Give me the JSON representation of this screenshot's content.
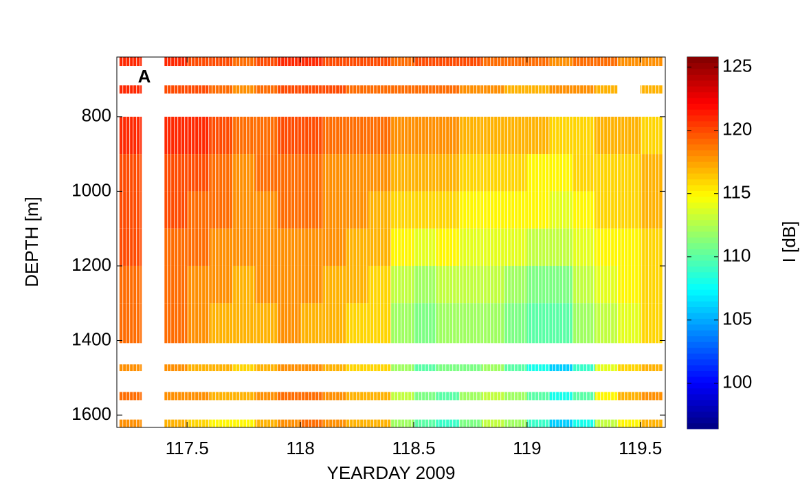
{
  "chart_data": {
    "type": "heatmap",
    "xlabel": "YEARDAY 2009",
    "ylabel": "DEPTH [m]",
    "colorbar_label": "I [dB]",
    "annotation": "A",
    "xlim": [
      117.19,
      119.61
    ],
    "xticks": [
      117.5,
      118,
      118.5,
      119,
      119.5
    ],
    "ylim": [
      640,
      1633
    ],
    "yticks": [
      800,
      1000,
      1200,
      1400,
      1600
    ],
    "y_reversed": true,
    "clim": [
      96.4,
      125.8
    ],
    "cticks": [
      100,
      105,
      110,
      115,
      120,
      125
    ],
    "colormap": "jet",
    "x_bins": [
      117.2,
      117.3,
      117.4,
      117.5,
      117.6,
      117.7,
      117.8,
      117.9,
      118.0,
      118.1,
      118.2,
      118.3,
      118.4,
      118.5,
      118.6,
      118.7,
      118.8,
      118.9,
      119.0,
      119.1,
      119.2,
      119.3,
      119.4,
      119.5,
      119.6
    ],
    "depth_bins": [
      [
        640,
        664
      ],
      [
        716,
        738
      ],
      [
        800,
        900
      ],
      [
        900,
        1000
      ],
      [
        1000,
        1100
      ],
      [
        1100,
        1200
      ],
      [
        1200,
        1300
      ],
      [
        1300,
        1407
      ],
      [
        1464,
        1482
      ],
      [
        1538,
        1560
      ],
      [
        1612,
        1633
      ]
    ],
    "z": [
      [
        121,
        null,
        121,
        120,
        120,
        119,
        120,
        121,
        121,
        120,
        120,
        120,
        119,
        120,
        120,
        120,
        119,
        119,
        119,
        118,
        119,
        119,
        118,
        118
      ],
      [
        121,
        null,
        120,
        120,
        119,
        118,
        119,
        120,
        120,
        120,
        119,
        119,
        119,
        119,
        119,
        118,
        118,
        117,
        117,
        118,
        118,
        117,
        null,
        117
      ],
      [
        121,
        null,
        121,
        121,
        120,
        119,
        119,
        120,
        120,
        119,
        119,
        119,
        118,
        118,
        118,
        117,
        117,
        117,
        117,
        116,
        116,
        117,
        117,
        116
      ],
      [
        120,
        null,
        120,
        120,
        119,
        118,
        119,
        119,
        119,
        118,
        118,
        118,
        117,
        117,
        117,
        116,
        116,
        116,
        115,
        115,
        116,
        116,
        116,
        117
      ],
      [
        120,
        null,
        120,
        119,
        119,
        118,
        118,
        119,
        119,
        118,
        118,
        117,
        116,
        116,
        116,
        115,
        115,
        115,
        115,
        114,
        115,
        116,
        116,
        117
      ],
      [
        120,
        null,
        119,
        119,
        118,
        118,
        118,
        118,
        118,
        118,
        117,
        117,
        115,
        114,
        115,
        114,
        114,
        114,
        113,
        113,
        114,
        115,
        115,
        116
      ],
      [
        119,
        null,
        119,
        118,
        118,
        117,
        118,
        118,
        118,
        117,
        117,
        116,
        113,
        112,
        113,
        113,
        113,
        112,
        111,
        111,
        113,
        114,
        115,
        116
      ],
      [
        119,
        null,
        119,
        118,
        117,
        117,
        117,
        118,
        117,
        117,
        116,
        116,
        112,
        111,
        112,
        112,
        112,
        111,
        110,
        110,
        112,
        113,
        114,
        116
      ],
      [
        118,
        null,
        118,
        117,
        117,
        116,
        117,
        118,
        118,
        117,
        116,
        116,
        112,
        110,
        111,
        111,
        112,
        110,
        108,
        106,
        109,
        114,
        116,
        117
      ],
      [
        119,
        null,
        118,
        118,
        117,
        117,
        118,
        119,
        119,
        118,
        117,
        117,
        113,
        111,
        110,
        112,
        113,
        112,
        110,
        108,
        110,
        115,
        117,
        118
      ],
      [
        118,
        null,
        117,
        116,
        115,
        115,
        117,
        118,
        119,
        118,
        117,
        117,
        112,
        110,
        109,
        111,
        113,
        112,
        109,
        106,
        108,
        113,
        115,
        117
      ]
    ]
  }
}
